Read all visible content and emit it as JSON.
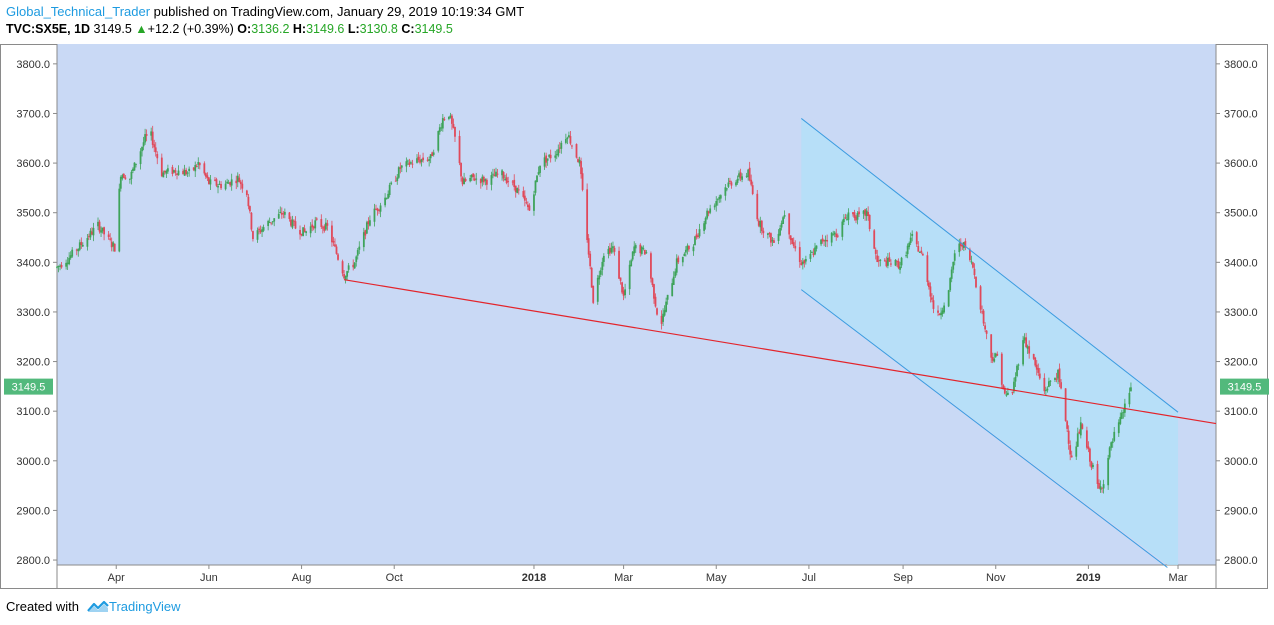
{
  "header": {
    "author": "Global_Technical_Trader",
    "published_text": "published on TradingView.com, January 29, 2019 10:19:34 GMT",
    "symbol": "TVC:SX5E, 1D",
    "last": "3149.5",
    "change_arrow": "▲",
    "change": "+12.2 (+0.39%)",
    "open_label": "O:",
    "open": "3136.2",
    "high_label": "H:",
    "high": "3149.6",
    "low_label": "L:",
    "low": "3130.8",
    "close_label": "C:",
    "close": "3149.5"
  },
  "footer": {
    "created_with": "Created with",
    "brand": "TradingView",
    "brand_icon": "tradingview-logo-icon"
  },
  "colors": {
    "background": "#c9d9f5",
    "up_candle": "#3ea35a",
    "down_candle": "#e0495a",
    "trendline": "#e3242b",
    "channel_line": "#3a9be0",
    "channel_fill": "#b0e0f8",
    "price_tag": "#52b97c",
    "brand": "#1e9be0"
  },
  "chart_data": {
    "type": "candlestick",
    "symbol": "TVC:SX5E",
    "interval": "1D",
    "last_price_label": "3149.5",
    "ylim": [
      2790,
      3840
    ],
    "y_ticks": [
      2800,
      2900,
      3000,
      3100,
      3200,
      3300,
      3400,
      3500,
      3600,
      3700,
      3800
    ],
    "y_tick_labels": [
      "2800.0",
      "2900.0",
      "3000.0",
      "3100.0",
      "3200.0",
      "3300.0",
      "3400.0",
      "3500.0",
      "3600.0",
      "3700.0",
      "3800.0"
    ],
    "x_range": [
      "2017-02-21",
      "2019-03-26"
    ],
    "x_ticks": [
      {
        "date": "2017-04-01",
        "label": "Apr",
        "bold": false
      },
      {
        "date": "2017-06-01",
        "label": "Jun",
        "bold": false
      },
      {
        "date": "2017-08-01",
        "label": "Aug",
        "bold": false
      },
      {
        "date": "2017-10-01",
        "label": "Oct",
        "bold": false
      },
      {
        "date": "2018-01-01",
        "label": "2018",
        "bold": true
      },
      {
        "date": "2018-03-01",
        "label": "Mar",
        "bold": false
      },
      {
        "date": "2018-05-01",
        "label": "May",
        "bold": false
      },
      {
        "date": "2018-07-01",
        "label": "Jul",
        "bold": false
      },
      {
        "date": "2018-09-01",
        "label": "Sep",
        "bold": false
      },
      {
        "date": "2018-11-01",
        "label": "Nov",
        "bold": false
      },
      {
        "date": "2019-01-01",
        "label": "2019",
        "bold": true
      },
      {
        "date": "2019-03-01",
        "label": "Mar",
        "bold": false
      }
    ],
    "trendline": {
      "from": [
        "2017-08-29",
        3365
      ],
      "to": [
        "2019-03-26",
        3075
      ]
    },
    "channel": {
      "upper": {
        "from": [
          "2018-06-26",
          3690
        ],
        "to": [
          "2019-03-01",
          3098
        ]
      },
      "lower": {
        "from": [
          "2018-06-26",
          3345
        ],
        "to": [
          "2019-02-22",
          2785
        ]
      },
      "fill_to": "2019-03-01"
    },
    "price_path": [
      [
        "2017-02-21",
        3390
      ],
      [
        "2017-03-01",
        3410
      ],
      [
        "2017-03-10",
        3440
      ],
      [
        "2017-03-20",
        3475
      ],
      [
        "2017-03-28",
        3440
      ],
      [
        "2017-03-31",
        3430
      ],
      [
        "2017-04-04",
        3580
      ],
      [
        "2017-04-10",
        3570
      ],
      [
        "2017-04-20",
        3650
      ],
      [
        "2017-04-24",
        3655
      ],
      [
        "2017-05-01",
        3580
      ],
      [
        "2017-05-10",
        3585
      ],
      [
        "2017-05-20",
        3580
      ],
      [
        "2017-05-25",
        3600
      ],
      [
        "2017-06-01",
        3560
      ],
      [
        "2017-06-10",
        3555
      ],
      [
        "2017-06-20",
        3570
      ],
      [
        "2017-06-26",
        3540
      ],
      [
        "2017-06-30",
        3450
      ],
      [
        "2017-07-10",
        3480
      ],
      [
        "2017-07-20",
        3500
      ],
      [
        "2017-07-28",
        3470
      ],
      [
        "2017-08-03",
        3460
      ],
      [
        "2017-08-10",
        3480
      ],
      [
        "2017-08-18",
        3470
      ],
      [
        "2017-08-29",
        3375
      ],
      [
        "2017-09-05",
        3400
      ],
      [
        "2017-09-15",
        3490
      ],
      [
        "2017-09-25",
        3530
      ],
      [
        "2017-10-05",
        3590
      ],
      [
        "2017-10-15",
        3605
      ],
      [
        "2017-10-25",
        3610
      ],
      [
        "2017-11-02",
        3690
      ],
      [
        "2017-11-06",
        3700
      ],
      [
        "2017-11-10",
        3650
      ],
      [
        "2017-11-15",
        3560
      ],
      [
        "2017-11-22",
        3570
      ],
      [
        "2017-12-01",
        3565
      ],
      [
        "2017-12-10",
        3580
      ],
      [
        "2017-12-20",
        3550
      ],
      [
        "2017-12-29",
        3505
      ],
      [
        "2018-01-05",
        3600
      ],
      [
        "2018-01-15",
        3620
      ],
      [
        "2018-01-23",
        3660
      ],
      [
        "2018-01-31",
        3600
      ],
      [
        "2018-02-05",
        3450
      ],
      [
        "2018-02-09",
        3325
      ],
      [
        "2018-02-16",
        3420
      ],
      [
        "2018-02-22",
        3430
      ],
      [
        "2018-03-01",
        3330
      ],
      [
        "2018-03-08",
        3430
      ],
      [
        "2018-03-16",
        3420
      ],
      [
        "2018-03-23",
        3300
      ],
      [
        "2018-03-26",
        3280
      ],
      [
        "2018-04-05",
        3400
      ],
      [
        "2018-04-16",
        3440
      ],
      [
        "2018-04-25",
        3500
      ],
      [
        "2018-05-08",
        3555
      ],
      [
        "2018-05-15",
        3570
      ],
      [
        "2018-05-22",
        3580
      ],
      [
        "2018-05-29",
        3480
      ],
      [
        "2018-06-05",
        3450
      ],
      [
        "2018-06-08",
        3440
      ],
      [
        "2018-06-15",
        3500
      ],
      [
        "2018-06-20",
        3440
      ],
      [
        "2018-06-26",
        3400
      ],
      [
        "2018-06-29",
        3400
      ],
      [
        "2018-07-10",
        3445
      ],
      [
        "2018-07-20",
        3460
      ],
      [
        "2018-07-27",
        3500
      ],
      [
        "2018-08-03",
        3490
      ],
      [
        "2018-08-08",
        3500
      ],
      [
        "2018-08-15",
        3400
      ],
      [
        "2018-08-22",
        3400
      ],
      [
        "2018-08-30",
        3395
      ],
      [
        "2018-09-07",
        3450
      ],
      [
        "2018-09-14",
        3410
      ],
      [
        "2018-09-21",
        3310
      ],
      [
        "2018-09-24",
        3290
      ],
      [
        "2018-10-01",
        3340
      ],
      [
        "2018-10-05",
        3420
      ],
      [
        "2018-10-10",
        3440
      ],
      [
        "2018-10-17",
        3390
      ],
      [
        "2018-10-24",
        3280
      ],
      [
        "2018-10-29",
        3210
      ],
      [
        "2018-11-02",
        3210
      ],
      [
        "2018-11-07",
        3130
      ],
      [
        "2018-11-12",
        3140
      ],
      [
        "2018-11-19",
        3250
      ],
      [
        "2018-11-26",
        3200
      ],
      [
        "2018-12-03",
        3140
      ],
      [
        "2018-12-07",
        3160
      ],
      [
        "2018-12-12",
        3175
      ],
      [
        "2018-12-17",
        3085
      ],
      [
        "2018-12-21",
        3000
      ],
      [
        "2018-12-27",
        3070
      ],
      [
        "2019-01-02",
        3005
      ],
      [
        "2019-01-08",
        2940
      ],
      [
        "2019-01-11",
        2960
      ],
      [
        "2019-01-15",
        3020
      ],
      [
        "2019-01-18",
        3050
      ],
      [
        "2019-01-22",
        3080
      ],
      [
        "2019-01-28",
        3140
      ],
      [
        "2019-01-29",
        3149.5
      ]
    ]
  }
}
